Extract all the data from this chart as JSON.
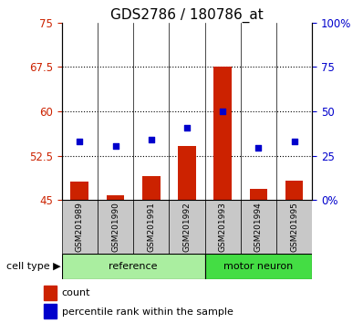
{
  "title": "GDS2786 / 180786_at",
  "samples": [
    "GSM201989",
    "GSM201990",
    "GSM201991",
    "GSM201992",
    "GSM201993",
    "GSM201994",
    "GSM201995"
  ],
  "bar_values": [
    48.2,
    45.9,
    49.1,
    54.2,
    67.5,
    47.0,
    48.3
  ],
  "dot_values": [
    55.0,
    54.2,
    55.2,
    57.2,
    60.0,
    53.8,
    55.0
  ],
  "bar_bottom": 45.0,
  "ylim_left": [
    45,
    75
  ],
  "ylim_right": [
    0,
    100
  ],
  "yticks_left": [
    45,
    52.5,
    60,
    67.5,
    75
  ],
  "yticks_right": [
    0,
    25,
    50,
    75,
    100
  ],
  "bar_color": "#cc2200",
  "dot_color": "#0000cc",
  "ref_n": 4,
  "mot_n": 3,
  "reference_label": "reference",
  "motor_neuron_label": "motor neuron",
  "cell_type_label": "cell type",
  "legend_count_label": "count",
  "legend_pct_label": "percentile rank within the sample",
  "ref_color": "#aaeea0",
  "motor_color": "#44dd44",
  "sample_bg_color": "#c8c8c8",
  "title_fontsize": 11
}
